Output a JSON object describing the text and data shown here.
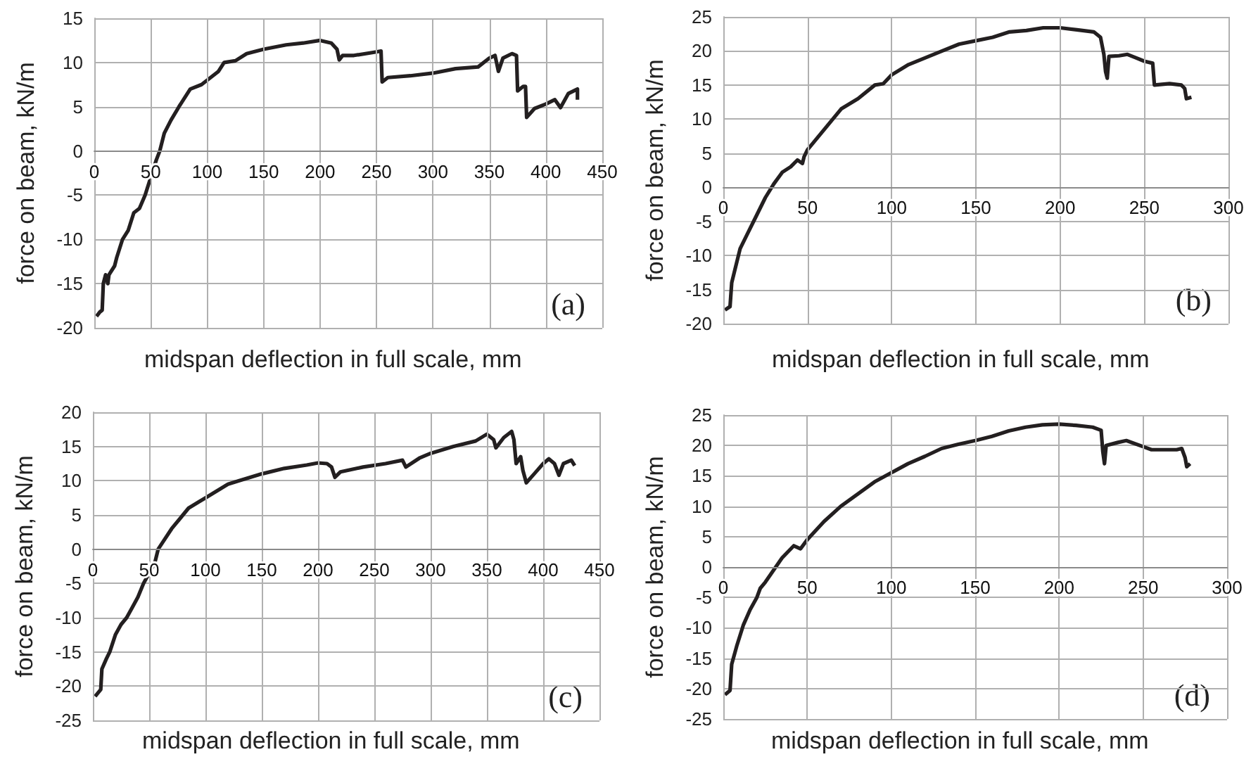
{
  "chart_data": [
    {
      "type": "line",
      "xlabel": "midspan deflection in full scale, mm",
      "ylabel": "force on beam, kN/m",
      "annotations": [
        "(a)"
      ],
      "xlim": [
        0,
        450
      ],
      "ylim": [
        -20,
        15
      ],
      "xticks": [
        0,
        50,
        100,
        150,
        200,
        250,
        300,
        350,
        400,
        450
      ],
      "yticks": [
        -20,
        -15,
        -10,
        -5,
        0,
        5,
        10,
        15
      ],
      "grid": true,
      "series": [
        {
          "color": "#231f20",
          "x": [
            2,
            5,
            7,
            8,
            10,
            12,
            13,
            18,
            20,
            25,
            30,
            35,
            40,
            45,
            50,
            55,
            58,
            62,
            68,
            75,
            80,
            85,
            95,
            100,
            110,
            115,
            125,
            135,
            150,
            170,
            185,
            200,
            210,
            215,
            217,
            220,
            230,
            250,
            254,
            255,
            260,
            280,
            300,
            320,
            340,
            350,
            355,
            358,
            362,
            370,
            374,
            375,
            380,
            382,
            383,
            390,
            400,
            408,
            413,
            420,
            428,
            428
          ],
          "values": [
            -18.7,
            -18.2,
            -18,
            -15,
            -14,
            -15,
            -14,
            -13,
            -12,
            -10,
            -9,
            -7,
            -6.5,
            -5,
            -3,
            -1,
            0,
            2,
            3.5,
            5,
            6,
            7,
            7.5,
            8,
            9,
            10,
            10.2,
            11,
            11.5,
            12,
            12.2,
            12.5,
            12.2,
            11.5,
            10.3,
            10.8,
            10.8,
            11.2,
            11.3,
            7.8,
            8.3,
            8.5,
            8.8,
            9.3,
            9.5,
            10.5,
            10.8,
            9,
            10.5,
            11,
            10.8,
            6.8,
            7.3,
            7.3,
            3.8,
            4.8,
            5.3,
            5.8,
            4.9,
            6.5,
            7,
            5.8
          ]
        }
      ]
    },
    {
      "type": "line",
      "xlabel": "midspan deflection in full scale, mm",
      "ylabel": "force on beam, kN/m",
      "annotations": [
        "(b)"
      ],
      "xlim": [
        0,
        300
      ],
      "ylim": [
        -20,
        25
      ],
      "xticks": [
        0,
        50,
        100,
        150,
        200,
        250,
        300
      ],
      "yticks": [
        -20,
        -15,
        -10,
        -5,
        0,
        5,
        10,
        15,
        20,
        25
      ],
      "grid": true,
      "series": [
        {
          "color": "#231f20",
          "x": [
            1,
            4,
            5,
            7,
            10,
            15,
            20,
            25,
            30,
            35,
            40,
            44,
            47,
            48,
            50,
            60,
            70,
            80,
            90,
            95,
            100,
            110,
            120,
            130,
            140,
            150,
            160,
            170,
            180,
            190,
            200,
            210,
            220,
            224,
            226,
            227,
            228,
            229,
            235,
            240,
            245,
            250,
            255,
            256,
            265,
            272,
            274,
            275,
            278
          ],
          "values": [
            -18,
            -17.5,
            -14,
            -12,
            -9,
            -6.5,
            -4,
            -1.5,
            0.5,
            2.2,
            3,
            4,
            3.5,
            4.5,
            5.5,
            8.5,
            11.5,
            13,
            15,
            15.2,
            16.5,
            18,
            19,
            20,
            21,
            21.5,
            22,
            22.8,
            23,
            23.4,
            23.4,
            23.1,
            22.8,
            22,
            19.5,
            17,
            16,
            19.2,
            19.3,
            19.5,
            19,
            18.5,
            18.2,
            15,
            15.2,
            15,
            14.5,
            13,
            13.2
          ]
        }
      ]
    },
    {
      "type": "line",
      "xlabel": "midspan deflection in full scale, mm",
      "ylabel": "force on beam, kN/m",
      "annotations": [
        "(c)"
      ],
      "xlim": [
        0,
        450
      ],
      "ylim": [
        -25,
        20
      ],
      "xticks": [
        0,
        50,
        100,
        150,
        200,
        250,
        300,
        350,
        400,
        450
      ],
      "yticks": [
        -25,
        -20,
        -15,
        -10,
        -5,
        0,
        5,
        10,
        15,
        20
      ],
      "grid": true,
      "series": [
        {
          "color": "#231f20",
          "x": [
            2,
            7,
            8,
            12,
            15,
            20,
            25,
            30,
            35,
            40,
            45,
            50,
            55,
            58,
            62,
            70,
            80,
            85,
            95,
            100,
            110,
            120,
            130,
            150,
            170,
            190,
            200,
            208,
            212,
            215,
            220,
            240,
            260,
            275,
            278,
            290,
            300,
            320,
            340,
            350,
            356,
            358,
            365,
            372,
            374,
            376,
            380,
            382,
            385,
            392,
            400,
            405,
            410,
            414,
            418,
            425,
            428
          ],
          "values": [
            -21.5,
            -20.5,
            -17.5,
            -16,
            -15,
            -12.5,
            -11,
            -10,
            -8.5,
            -7,
            -5,
            -3.5,
            -2,
            0,
            1,
            3,
            5,
            6,
            7,
            7.5,
            8.5,
            9.5,
            10,
            11,
            11.8,
            12.3,
            12.6,
            12.5,
            12,
            10.5,
            11.3,
            12,
            12.5,
            13,
            12,
            13.3,
            14,
            15,
            15.8,
            16.8,
            16,
            14.8,
            16.3,
            17.2,
            16,
            12.5,
            13.5,
            11.5,
            9.7,
            11,
            12.5,
            13.2,
            12.5,
            10.8,
            12.5,
            13,
            12.2
          ]
        }
      ]
    },
    {
      "type": "line",
      "xlabel": "midspan deflection in full scale, mm",
      "ylabel": "force on beam, kN/m",
      "annotations": [
        "(d)"
      ],
      "xlim": [
        0,
        300
      ],
      "ylim": [
        -25,
        25
      ],
      "xticks": [
        0,
        50,
        100,
        150,
        200,
        250,
        300
      ],
      "yticks": [
        -25,
        -20,
        -15,
        -10,
        -5,
        0,
        5,
        10,
        15,
        20,
        25
      ],
      "grid": true,
      "series": [
        {
          "color": "#231f20",
          "x": [
            1,
            4,
            5,
            8,
            12,
            16,
            20,
            22,
            25,
            30,
            35,
            42,
            46,
            50,
            60,
            70,
            80,
            90,
            100,
            110,
            120,
            130,
            140,
            150,
            160,
            170,
            180,
            190,
            200,
            210,
            220,
            225,
            226,
            227,
            228,
            235,
            240,
            250,
            255,
            270,
            273,
            275,
            276,
            278
          ],
          "values": [
            -21,
            -20.3,
            -16,
            -13,
            -9.5,
            -7,
            -5,
            -3.5,
            -2.5,
            -0.5,
            1.5,
            3.5,
            3,
            4.5,
            7.5,
            10,
            12,
            14,
            15.5,
            17,
            18.2,
            19.5,
            20.2,
            20.8,
            21.5,
            22.4,
            23,
            23.4,
            23.5,
            23.3,
            23,
            22.5,
            19,
            17,
            20,
            20.5,
            20.8,
            19.8,
            19.3,
            19.3,
            19.5,
            18,
            16.5,
            17
          ]
        }
      ]
    }
  ]
}
